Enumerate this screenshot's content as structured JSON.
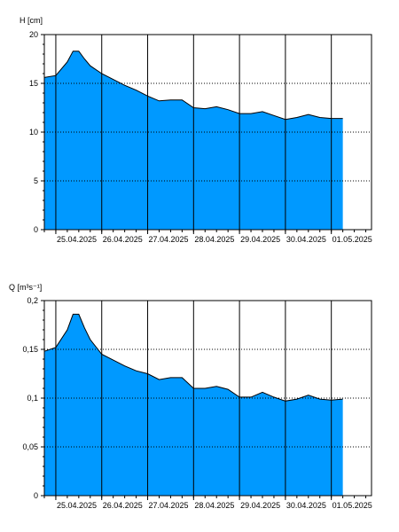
{
  "chart_data": [
    {
      "type": "area",
      "ylabel": "H [cm]",
      "ylim": [
        0,
        20
      ],
      "xlim": [
        "2025-04-24T18:00",
        "2025-05-01T21:00"
      ],
      "yticks": [
        {
          "value": 0,
          "label": "0"
        },
        {
          "value": 5,
          "label": "5"
        },
        {
          "value": 10,
          "label": "10"
        },
        {
          "value": 15,
          "label": "15"
        },
        {
          "value": 20,
          "label": "20"
        }
      ],
      "xticks": [
        {
          "value": "2025-04-25T00:00",
          "label": "25.04.2025"
        },
        {
          "value": "2025-04-26T00:00",
          "label": "26.04.2025"
        },
        {
          "value": "2025-04-27T00:00",
          "label": "27.04.2025"
        },
        {
          "value": "2025-04-28T00:00",
          "label": "28.04.2025"
        },
        {
          "value": "2025-04-29T00:00",
          "label": "29.04.2025"
        },
        {
          "value": "2025-04-30T00:00",
          "label": "30.04.2025"
        },
        {
          "value": "2025-05-01T00:00",
          "label": "01.05.2025"
        }
      ],
      "grid": {
        "horizontal": "dotted",
        "vertical": "solid"
      },
      "fill_color": "#0099ff",
      "series": [
        {
          "x": [
            "2025-04-24T18:00",
            "2025-04-25T00:00",
            "2025-04-25T06:00",
            "2025-04-25T09:00",
            "2025-04-25T12:00",
            "2025-04-25T15:00",
            "2025-04-25T18:00",
            "2025-04-26T00:00",
            "2025-04-26T06:00",
            "2025-04-26T12:00",
            "2025-04-26T18:00",
            "2025-04-27T00:00",
            "2025-04-27T06:00",
            "2025-04-27T12:00",
            "2025-04-27T18:00",
            "2025-04-28T00:00",
            "2025-04-28T06:00",
            "2025-04-28T12:00",
            "2025-04-28T18:00",
            "2025-04-29T00:00",
            "2025-04-29T06:00",
            "2025-04-29T12:00",
            "2025-04-29T18:00",
            "2025-04-30T00:00",
            "2025-04-30T06:00",
            "2025-04-30T12:00",
            "2025-04-30T18:00",
            "2025-05-01T00:00",
            "2025-05-01T06:00"
          ],
          "y": [
            15.6,
            15.8,
            17.2,
            18.3,
            18.3,
            17.5,
            16.8,
            16.0,
            15.4,
            14.8,
            14.3,
            13.7,
            13.2,
            13.3,
            13.3,
            12.5,
            12.4,
            12.6,
            12.3,
            11.9,
            11.9,
            12.1,
            11.7,
            11.3,
            11.5,
            11.8,
            11.5,
            11.4,
            11.4
          ]
        }
      ]
    },
    {
      "type": "area",
      "ylabel": "Q [m³s⁻¹]",
      "ylim": [
        0,
        0.2
      ],
      "xlim": [
        "2025-04-24T18:00",
        "2025-05-01T21:00"
      ],
      "yticks": [
        {
          "value": 0,
          "label": "0"
        },
        {
          "value": 0.05,
          "label": "0,05"
        },
        {
          "value": 0.1,
          "label": "0,1"
        },
        {
          "value": 0.15,
          "label": "0,15"
        },
        {
          "value": 0.2,
          "label": "0,2"
        }
      ],
      "xticks": [
        {
          "value": "2025-04-25T00:00",
          "label": "25.04.2025"
        },
        {
          "value": "2025-04-26T00:00",
          "label": "26.04.2025"
        },
        {
          "value": "2025-04-27T00:00",
          "label": "27.04.2025"
        },
        {
          "value": "2025-04-28T00:00",
          "label": "28.04.2025"
        },
        {
          "value": "2025-04-29T00:00",
          "label": "29.04.2025"
        },
        {
          "value": "2025-04-30T00:00",
          "label": "30.04.2025"
        },
        {
          "value": "2025-05-01T00:00",
          "label": "01.05.2025"
        }
      ],
      "grid": {
        "horizontal": "dotted",
        "vertical": "solid"
      },
      "fill_color": "#0099ff",
      "series": [
        {
          "x": [
            "2025-04-24T18:00",
            "2025-04-25T00:00",
            "2025-04-25T06:00",
            "2025-04-25T09:00",
            "2025-04-25T12:00",
            "2025-04-25T15:00",
            "2025-04-25T18:00",
            "2025-04-26T00:00",
            "2025-04-26T06:00",
            "2025-04-26T12:00",
            "2025-04-26T18:00",
            "2025-04-27T00:00",
            "2025-04-27T06:00",
            "2025-04-27T12:00",
            "2025-04-27T18:00",
            "2025-04-28T00:00",
            "2025-04-28T06:00",
            "2025-04-28T12:00",
            "2025-04-28T18:00",
            "2025-04-29T00:00",
            "2025-04-29T06:00",
            "2025-04-29T12:00",
            "2025-04-29T18:00",
            "2025-04-30T00:00",
            "2025-04-30T06:00",
            "2025-04-30T12:00",
            "2025-04-30T18:00",
            "2025-05-01T00:00",
            "2025-05-01T06:00"
          ],
          "y": [
            0.148,
            0.152,
            0.17,
            0.186,
            0.186,
            0.172,
            0.16,
            0.145,
            0.139,
            0.133,
            0.128,
            0.125,
            0.119,
            0.121,
            0.121,
            0.11,
            0.11,
            0.112,
            0.109,
            0.101,
            0.101,
            0.106,
            0.101,
            0.097,
            0.099,
            0.103,
            0.099,
            0.098,
            0.099
          ]
        }
      ]
    }
  ]
}
